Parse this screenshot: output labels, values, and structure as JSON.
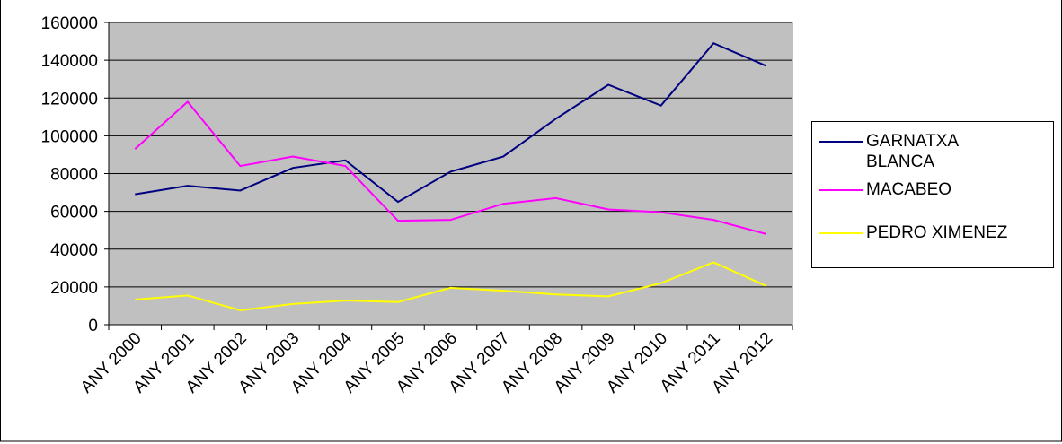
{
  "chart_data": {
    "type": "line",
    "categories": [
      "ANY 2000",
      "ANY 2001",
      "ANY 2002",
      "ANY 2003",
      "ANY 2004",
      "ANY 2005",
      "ANY 2006",
      "ANY 2007",
      "ANY 2008",
      "ANY 2009",
      "ANY 2010",
      "ANY 2011",
      "ANY 2012"
    ],
    "series": [
      {
        "name": "GARNATXA BLANCA",
        "color": "#000080",
        "values": [
          69000,
          73500,
          71000,
          83000,
          87000,
          65000,
          81000,
          89000,
          109000,
          127000,
          116000,
          149000,
          137000
        ]
      },
      {
        "name": "MACABEO",
        "color": "#ff00ff",
        "values": [
          93000,
          118000,
          84000,
          89000,
          84000,
          55000,
          55500,
          64000,
          67000,
          61000,
          59500,
          55500,
          48000
        ]
      },
      {
        "name": "PEDRO XIMENEZ",
        "color": "#ffff00",
        "values": [
          13300,
          15500,
          7600,
          11000,
          12800,
          12000,
          19500,
          18000,
          16000,
          15000,
          22000,
          33000,
          20500
        ]
      }
    ],
    "ylim": [
      0,
      160000
    ],
    "yticks": [
      0,
      20000,
      40000,
      60000,
      80000,
      100000,
      120000,
      140000,
      160000
    ],
    "grid": true
  }
}
